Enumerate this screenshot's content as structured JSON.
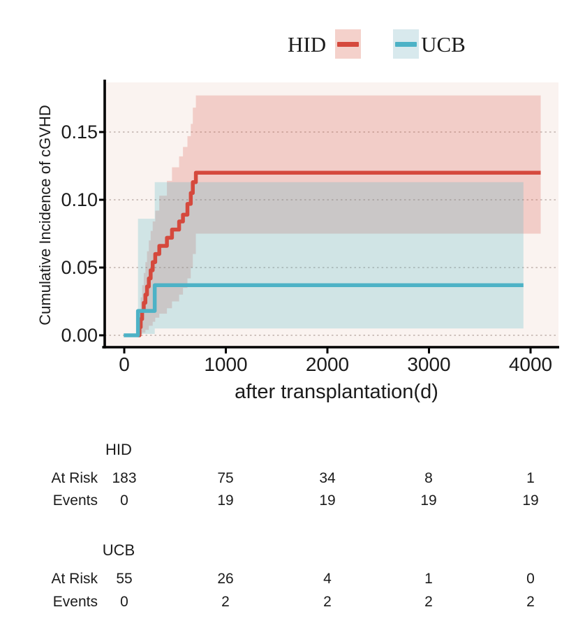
{
  "figure_title": "Cumulative incidence of cGVHD after transplantation, HID vs UCB, with 95% confidence bands and risk table",
  "legend": {
    "items": [
      {
        "label": "HID",
        "line_color": "#d5493d",
        "band_color": "#f4d1cb"
      },
      {
        "label": "UCB",
        "line_color": "#4db2c6",
        "band_color": "#d8e9ed"
      }
    ]
  },
  "chart_data": {
    "type": "line",
    "subtype": "cumulative-incidence-step-curves-with-ci-bands",
    "title": "",
    "xlabel": "after transplantation(d)",
    "ylabel": "Cumulative Incidence of cGVHD",
    "x_ticks": [
      0,
      1000,
      2000,
      3000,
      4000
    ],
    "y_ticks": [
      0,
      0.05,
      0.1,
      0.15
    ],
    "xlim": [
      -190,
      4380
    ],
    "ylim": [
      0,
      0.186
    ],
    "grid": "horizontal dotted",
    "legend_position": "top",
    "panel_background": "#faf3f0",
    "series": [
      {
        "name": "HID",
        "line_color": "#d5493d",
        "band_rgba": "rgba(213,73,60,0.22)",
        "start_day": 135,
        "end_day": 4100,
        "final_estimate": 0.12,
        "steps": [
          [
            150,
            0.006
          ],
          [
            162,
            0.012
          ],
          [
            176,
            0.018
          ],
          [
            192,
            0.024
          ],
          [
            208,
            0.03
          ],
          [
            224,
            0.036
          ],
          [
            242,
            0.042
          ],
          [
            260,
            0.048
          ],
          [
            280,
            0.054
          ],
          [
            305,
            0.06
          ],
          [
            345,
            0.066
          ],
          [
            420,
            0.072
          ],
          [
            470,
            0.078
          ],
          [
            540,
            0.084
          ],
          [
            578,
            0.089
          ],
          [
            622,
            0.097
          ],
          [
            655,
            0.105
          ],
          [
            675,
            0.113
          ],
          [
            705,
            0.12
          ]
        ],
        "ci_upper": [
          [
            150,
            0.018
          ],
          [
            162,
            0.028
          ],
          [
            176,
            0.037
          ],
          [
            192,
            0.046
          ],
          [
            208,
            0.054
          ],
          [
            224,
            0.062
          ],
          [
            242,
            0.07
          ],
          [
            260,
            0.077
          ],
          [
            280,
            0.084
          ],
          [
            305,
            0.092
          ],
          [
            345,
            0.103
          ],
          [
            420,
            0.114
          ],
          [
            470,
            0.124
          ],
          [
            540,
            0.132
          ],
          [
            578,
            0.139
          ],
          [
            622,
            0.147
          ],
          [
            655,
            0.156
          ],
          [
            675,
            0.168
          ],
          [
            705,
            0.177
          ]
        ],
        "ci_lower": [
          [
            150,
            0.001
          ],
          [
            176,
            0.002
          ],
          [
            208,
            0.004
          ],
          [
            242,
            0.007
          ],
          [
            280,
            0.01
          ],
          [
            305,
            0.013
          ],
          [
            345,
            0.016
          ],
          [
            420,
            0.02
          ],
          [
            470,
            0.025
          ],
          [
            540,
            0.03
          ],
          [
            578,
            0.035
          ],
          [
            622,
            0.042
          ],
          [
            655,
            0.05
          ],
          [
            675,
            0.06
          ],
          [
            705,
            0.075
          ]
        ]
      },
      {
        "name": "UCB",
        "line_color": "#4db2c6",
        "band_rgba": "rgba(77,178,198,0.24)",
        "start_day": -5,
        "end_day": 3930,
        "final_estimate": 0.037,
        "steps": [
          [
            135,
            0.018
          ],
          [
            300,
            0.037
          ]
        ],
        "ci_upper": [
          [
            135,
            0.086
          ],
          [
            300,
            0.113
          ]
        ],
        "ci_lower": [
          [
            135,
            0.001
          ],
          [
            300,
            0.005
          ]
        ]
      }
    ]
  },
  "risk_table": {
    "at_risk_label": "At Risk",
    "events_label": "Events",
    "time_points": [
      0,
      1000,
      2000,
      3000,
      4000
    ],
    "groups": [
      {
        "name": "HID",
        "at_risk": [
          "183",
          "75",
          "34",
          "8",
          "1"
        ],
        "events": [
          "0",
          "19",
          "19",
          "19",
          "19"
        ]
      },
      {
        "name": "UCB",
        "at_risk": [
          "55",
          "26",
          "4",
          "1",
          "0"
        ],
        "events": [
          "0",
          "2",
          "2",
          "2",
          "2"
        ]
      }
    ]
  }
}
